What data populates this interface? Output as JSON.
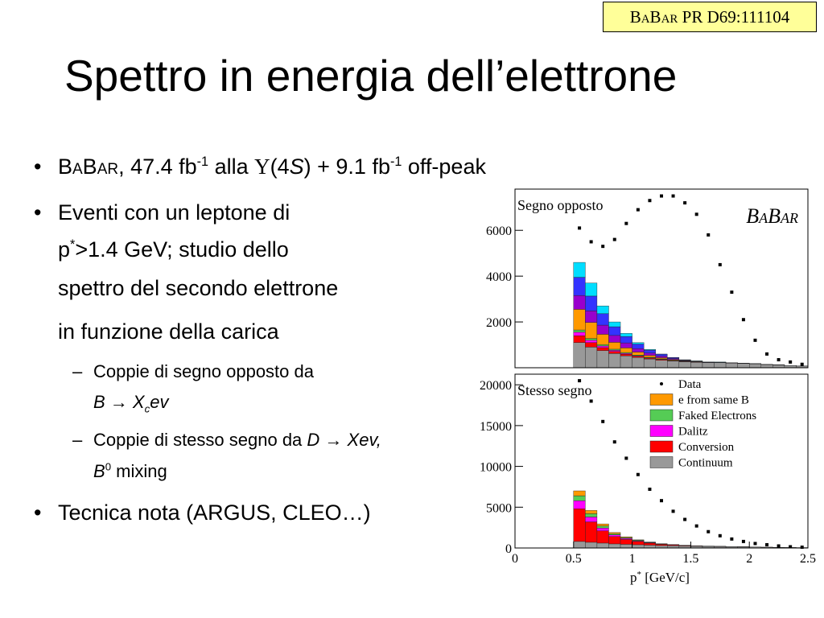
{
  "reference": "BaBar PR D69:111104",
  "title": "Spettro in energia dell’elettrone",
  "bullets": [
    {
      "lines": [
        [
          "BaBar",
          ", 47.4 fb",
          "-1",
          " alla ",
          "Υ",
          "(4",
          "S",
          ") + 9.1 fb",
          "-1",
          " off-peak"
        ]
      ]
    },
    {
      "lines": [
        [
          "Eventi con un leptone di"
        ],
        [
          "p",
          "*",
          ">1.4 GeV; studio dello"
        ],
        [
          "spettro del secondo elettrone"
        ],
        [
          "in funzione della carica"
        ]
      ],
      "sub": [
        {
          "lines": [
            [
              "Coppie di segno opposto da"
            ],
            [
              "B",
              " → ",
              "X",
              "c",
              "ev"
            ]
          ]
        },
        {
          "lines": [
            [
              "Coppie di stesso segno da ",
              "D",
              " → ",
              "Xev,"
            ],
            [
              "B",
              "0",
              " mixing"
            ]
          ]
        }
      ]
    },
    {
      "lines": [
        [
          "Tecnica nota (ARGUS, CLEO…)"
        ]
      ]
    }
  ],
  "charts": [
    {
      "type": "stacked-histogram",
      "label": "Segno opposto",
      "logo": "BaBar",
      "bins": [
        0.5,
        0.6,
        0.7,
        0.8,
        0.9,
        1.0,
        1.1,
        1.2,
        1.3,
        1.4,
        1.5,
        1.6,
        1.7,
        1.8,
        1.9,
        2.0,
        2.1,
        2.2,
        2.3,
        2.4,
        2.5
      ],
      "xlim": [
        0,
        2.5
      ],
      "ylim": [
        0,
        7800
      ],
      "yticks": [
        2000,
        4000,
        6000
      ],
      "data": {
        "color": "#000000",
        "values": [
          6100,
          5500,
          5300,
          5600,
          6300,
          6900,
          7300,
          7500,
          7500,
          7200,
          6700,
          5800,
          4500,
          3300,
          2100,
          1200,
          600,
          350,
          250,
          150
        ]
      },
      "series": [
        {
          "color": "#999999",
          "values": [
            1100,
            900,
            750,
            620,
            520,
            450,
            380,
            330,
            290,
            260,
            240,
            220,
            220,
            200,
            190,
            170,
            140,
            120,
            95,
            75
          ]
        },
        {
          "color": "#ff0000",
          "values": [
            300,
            200,
            130,
            90,
            70,
            50,
            40,
            30,
            20,
            15,
            10,
            5,
            5,
            3,
            2,
            2,
            1,
            1,
            1,
            1
          ]
        },
        {
          "color": "#ff00ff",
          "values": [
            150,
            100,
            70,
            50,
            35,
            25,
            15,
            10,
            8,
            5,
            3,
            2,
            2,
            1,
            1,
            1,
            1,
            1,
            0,
            0
          ]
        },
        {
          "color": "#55cc55",
          "values": [
            100,
            80,
            60,
            50,
            40,
            30,
            25,
            20,
            15,
            10,
            8,
            5,
            4,
            3,
            2,
            2,
            2,
            1,
            1,
            1
          ]
        },
        {
          "color": "#ff9900",
          "values": [
            900,
            700,
            450,
            300,
            200,
            130,
            80,
            50,
            30,
            15,
            10,
            5,
            3,
            2,
            1,
            1,
            1,
            1,
            0,
            0
          ]
        },
        {
          "color": "#9900cc",
          "values": [
            600,
            500,
            400,
            300,
            220,
            150,
            100,
            70,
            40,
            20,
            12,
            6,
            5,
            4,
            2,
            2,
            2,
            2,
            1,
            1
          ]
        },
        {
          "color": "#3333ff",
          "values": [
            800,
            650,
            500,
            380,
            280,
            200,
            130,
            80,
            40,
            20,
            10,
            5,
            5,
            3,
            1,
            1,
            1,
            1,
            1,
            1
          ]
        },
        {
          "color": "#00ddff",
          "values": [
            650,
            570,
            340,
            210,
            135,
            65,
            29,
            9,
            7,
            5,
            7,
            2,
            6,
            4,
            1,
            1,
            2,
            1,
            1,
            1
          ]
        }
      ]
    },
    {
      "type": "stacked-histogram",
      "label": "Stesso segno",
      "bins": [
        0.5,
        0.6,
        0.7,
        0.8,
        0.9,
        1.0,
        1.1,
        1.2,
        1.3,
        1.4,
        1.5,
        1.6,
        1.7,
        1.8,
        1.9,
        2.0,
        2.1,
        2.2,
        2.3,
        2.4,
        2.5
      ],
      "xlim": [
        0,
        2.5
      ],
      "ylim": [
        0,
        21300
      ],
      "yticks": [
        0,
        5000,
        10000,
        15000,
        20000
      ],
      "xticks": [
        0,
        0.5,
        1,
        1.5,
        2,
        2.5
      ],
      "xlabel": [
        "p",
        "*",
        " [GeV/c]"
      ],
      "legend": true,
      "data": {
        "name": "Data",
        "color": "#000000",
        "values": [
          20500,
          18000,
          15500,
          13000,
          11000,
          9000,
          7200,
          5800,
          4500,
          3500,
          2700,
          2000,
          1500,
          1100,
          800,
          550,
          400,
          250,
          150,
          100
        ]
      },
      "series": [
        {
          "name": "Continuum",
          "color": "#999999",
          "values": [
            800,
            700,
            600,
            500,
            450,
            400,
            350,
            300,
            280,
            250,
            220,
            200,
            180,
            160,
            140,
            120,
            100,
            80,
            60,
            40
          ]
        },
        {
          "name": "Conversion",
          "color": "#ff0000",
          "values": [
            4000,
            2500,
            1500,
            900,
            600,
            400,
            250,
            150,
            100,
            60,
            40,
            25,
            15,
            10,
            5,
            3,
            2,
            1,
            1,
            1
          ]
        },
        {
          "name": "Dalitz",
          "color": "#ff00ff",
          "values": [
            1000,
            600,
            350,
            200,
            130,
            80,
            50,
            30,
            20,
            10,
            5,
            3,
            2,
            1,
            1,
            1,
            0,
            0,
            0,
            0
          ]
        },
        {
          "name": "Faked Electrons",
          "color": "#55cc55",
          "values": [
            600,
            400,
            250,
            150,
            100,
            70,
            50,
            30,
            20,
            10,
            5,
            3,
            2,
            1,
            1,
            1,
            0,
            0,
            0,
            0
          ]
        },
        {
          "name": "e from same B",
          "color": "#ff9900",
          "values": [
            600,
            400,
            250,
            150,
            90,
            50,
            30,
            15,
            8,
            4,
            2,
            1,
            1,
            0,
            0,
            0,
            0,
            0,
            0,
            0
          ]
        }
      ]
    }
  ]
}
